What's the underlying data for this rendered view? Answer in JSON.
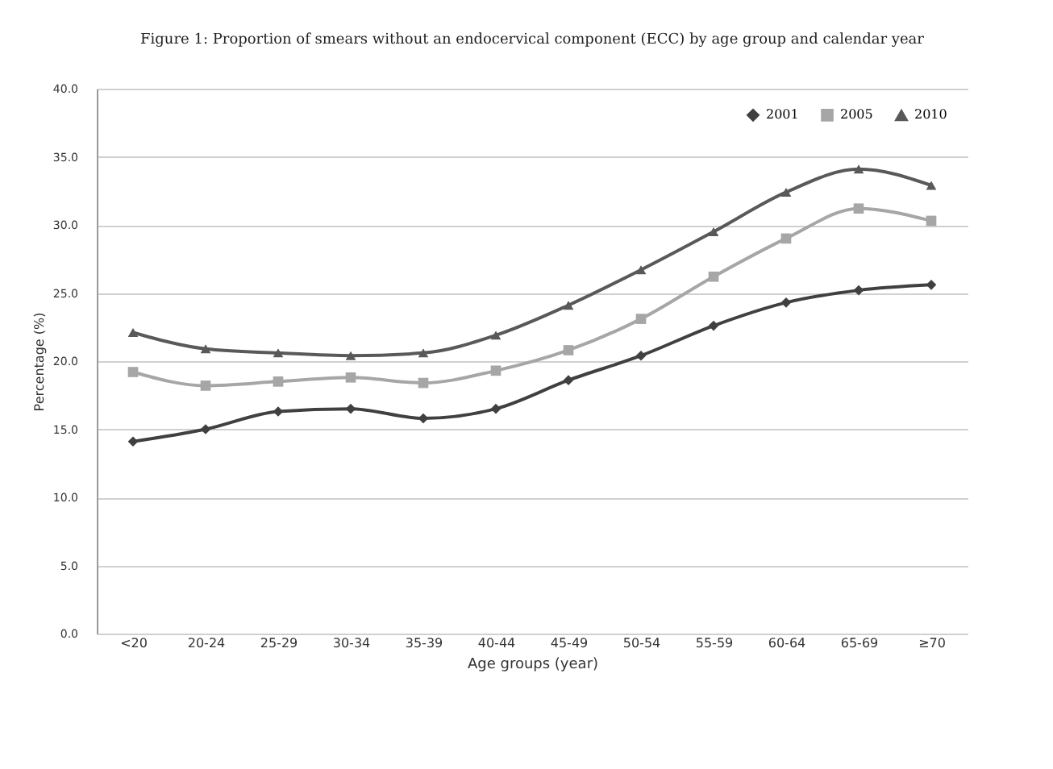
{
  "chart_data": {
    "type": "line",
    "title": "Figure 1: Proportion of smears without an endocervical component (ECC) by age group and calendar year",
    "xlabel": "Age groups (year)",
    "ylabel": "Percentage (%)",
    "categories": [
      "<20",
      "20-24",
      "25-29",
      "30-34",
      "35-39",
      "40-44",
      "45-49",
      "50-54",
      "55-59",
      "60-64",
      "65-69",
      "≥70"
    ],
    "series": [
      {
        "name": "2001",
        "color": "#404040",
        "marker": "diamond",
        "values": [
          14.1,
          15.0,
          16.3,
          16.5,
          15.8,
          16.5,
          18.6,
          20.4,
          22.6,
          24.3,
          25.2,
          25.6
        ]
      },
      {
        "name": "2005",
        "color": "#a6a6a6",
        "marker": "square",
        "values": [
          19.2,
          18.2,
          18.5,
          18.8,
          18.4,
          19.3,
          20.8,
          23.1,
          26.2,
          29.0,
          31.2,
          30.3
        ]
      },
      {
        "name": "2010",
        "color": "#595959",
        "marker": "triangle",
        "values": [
          22.1,
          20.9,
          20.6,
          20.4,
          20.6,
          21.9,
          24.1,
          26.7,
          29.5,
          32.4,
          34.1,
          32.9
        ]
      }
    ],
    "ylim": [
      0,
      40
    ],
    "yticks": [
      {
        "value": 0,
        "label": "0.0"
      },
      {
        "value": 5,
        "label": "5.0"
      },
      {
        "value": 10,
        "label": "10.0"
      },
      {
        "value": 15,
        "label": "15.0"
      },
      {
        "value": 20,
        "label": "20.0"
      },
      {
        "value": 25,
        "label": "25.0"
      },
      {
        "value": 30,
        "label": "30.0"
      },
      {
        "value": 35,
        "label": "35.0"
      },
      {
        "value": 40,
        "label": "40.0"
      }
    ],
    "grid": "y",
    "legend": "top right",
    "line_style": "solid"
  }
}
